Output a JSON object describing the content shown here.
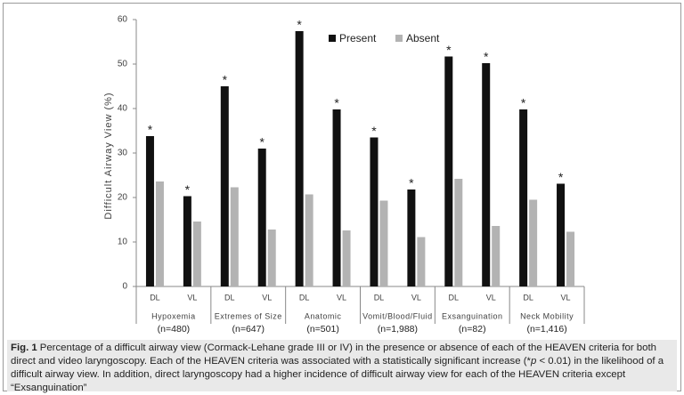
{
  "chart_data": {
    "type": "bar",
    "y_label": "Difficult Airway View (%)",
    "categories": [
      "DL",
      "VL",
      "DL",
      "VL",
      "DL",
      "VL",
      "DL",
      "VL",
      "DL",
      "VL",
      "DL",
      "VL"
    ],
    "groups": [
      {
        "label": "Hypoxemia",
        "n": "(n=480)"
      },
      {
        "label": "Extremes of Size",
        "n": "(n=647)"
      },
      {
        "label": "Anatomic",
        "n": "(n=501)"
      },
      {
        "label": "Vomit/Blood/Fluid",
        "n": "(n=1,988)"
      },
      {
        "label": "Exsanguination",
        "n": "(n=82)"
      },
      {
        "label": "Neck Mobility",
        "n": "(n=1,416)"
      }
    ],
    "series": [
      {
        "name": "Present",
        "color": "#111111",
        "values": [
          33.8,
          20.3,
          45,
          31,
          57.4,
          39.8,
          33.5,
          21.8,
          51.7,
          50.2,
          39.8,
          23.1
        ],
        "annotations": [
          "*",
          "*",
          "*",
          "*",
          "*",
          "*",
          "*",
          "*",
          "*",
          "*",
          "*",
          "*"
        ]
      },
      {
        "name": "Absent",
        "color": "#b3b3b3",
        "values": [
          23.6,
          14.6,
          22.3,
          12.8,
          20.7,
          12.6,
          19.3,
          11.1,
          24.2,
          13.6,
          19.5,
          12.3
        ]
      }
    ],
    "ylim": [
      0,
      60
    ],
    "yticks": [
      0,
      10,
      20,
      30,
      40,
      50,
      60
    ],
    "grid": false,
    "legend": "top"
  },
  "caption": {
    "label": "Fig. 1",
    "parts": [
      "Percentage of a difficult airway view (Cormack-Lehane grade III or IV) in the presence or absence of each of the HEAVEN criteria for both direct and video laryngoscopy. Each of the HEAVEN criteria was associated with a statistically significant increase (*",
      "p",
      " < 0.01) in the likelihood of a difficult airway view. In addition, direct laryngoscopy had a higher incidence of difficult airway view for each of the HEAVEN criteria except “Exsanguination”"
    ]
  }
}
